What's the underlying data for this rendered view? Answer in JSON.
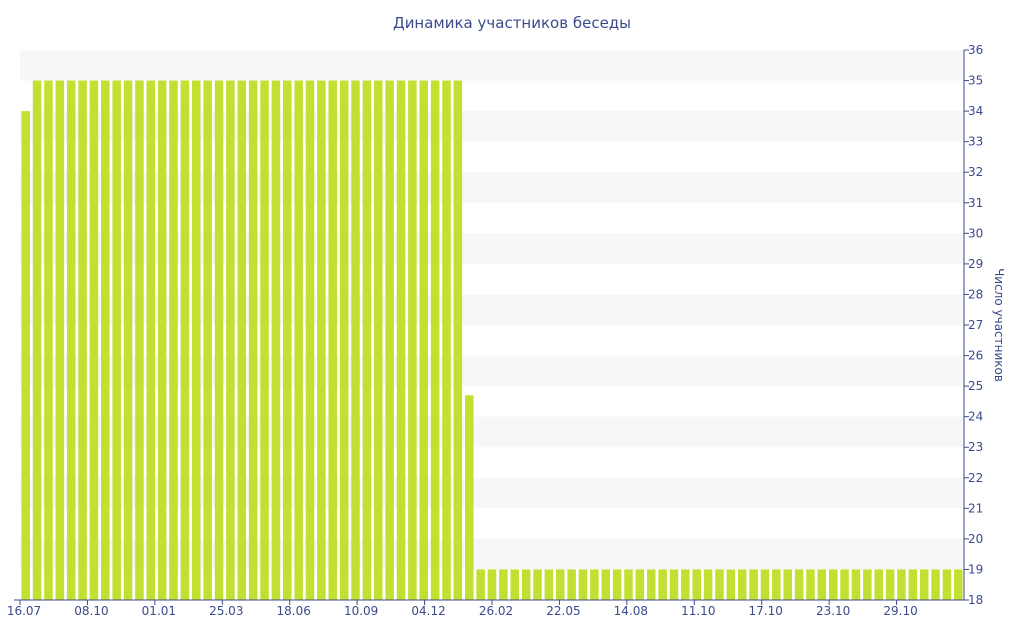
{
  "chart_data": {
    "type": "bar",
    "title": "Динамика участников беседы",
    "xlabel": "",
    "ylabel": "Число участников",
    "ylim": [
      18,
      36
    ],
    "yticks": [
      18,
      19,
      20,
      21,
      22,
      23,
      24,
      25,
      26,
      27,
      28,
      29,
      30,
      31,
      32,
      33,
      34,
      35,
      36
    ],
    "y_axis_side": "right",
    "grid": "horizontal bands",
    "x_tick_labels": [
      "16.07",
      "08.10",
      "01.01",
      "25.03",
      "18.06",
      "10.09",
      "04.12",
      "26.02",
      "22.05",
      "14.08",
      "11.10",
      "17.10",
      "23.10",
      "29.10"
    ],
    "values": [
      34,
      35,
      35,
      35,
      35,
      35,
      35,
      35,
      35,
      35,
      35,
      35,
      35,
      35,
      35,
      35,
      35,
      35,
      35,
      35,
      35,
      35,
      35,
      35,
      35,
      35,
      35,
      35,
      35,
      35,
      35,
      35,
      35,
      35,
      35,
      35,
      35,
      35,
      35,
      24.7,
      19,
      19,
      19,
      19,
      19,
      19,
      19,
      19,
      19,
      19,
      19,
      19,
      19,
      19,
      19,
      19,
      19,
      19,
      19,
      19,
      19,
      19,
      19,
      19,
      19,
      19,
      19,
      19,
      19,
      19,
      19,
      19,
      19,
      19,
      19,
      19,
      19,
      19,
      19,
      19,
      19,
      19,
      19
    ]
  },
  "colors": {
    "bar": "#c2e032",
    "band": "#f7f7f7",
    "text": "#3b4a8c",
    "axis": "#3b4a8c"
  }
}
